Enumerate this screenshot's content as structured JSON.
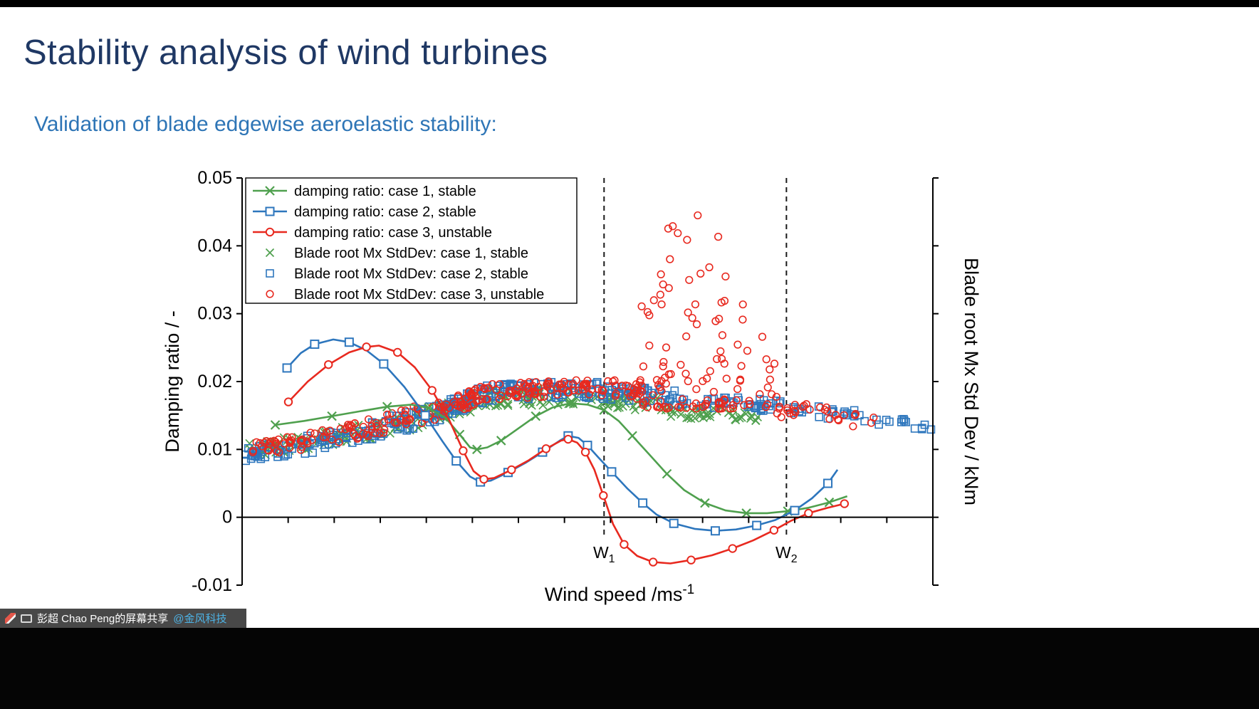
{
  "page": {
    "title": "Stability analysis of wind turbines",
    "subtitle": "Validation of blade edgewise aeroelastic stability:"
  },
  "share_bar": {
    "text": "彭超 Chao Peng的屏幕共享",
    "mention": "@金风科技",
    "icons": [
      "annotation-pen-icon",
      "screen-share-monitor-icon"
    ]
  },
  "chart_data": {
    "type": "line+scatter",
    "title": "",
    "xlabel": {
      "text": "Wind speed /ms",
      "sup": "-1"
    },
    "ylabel_left": "Damping ratio / -",
    "ylabel_right": "Blade root Mx Std Dev / kNm",
    "ylim": [
      -0.01,
      0.05
    ],
    "yticks": [
      0.05,
      0.04,
      0.03,
      0.02,
      0.01,
      0,
      -0.01
    ],
    "x_axis": {
      "labeled": false,
      "tick_count": 15
    },
    "grid": false,
    "legend_position": "top-left-inside",
    "annotations": [
      {
        "x": 0.524,
        "label": "W",
        "sub": "1"
      },
      {
        "x": 0.788,
        "label": "W",
        "sub": "2"
      }
    ],
    "colors": {
      "case1": "#4fa04e",
      "case2": "#2d76bd",
      "case3": "#e8291f",
      "axis": "#000000"
    },
    "legend": [
      {
        "type": "line-x",
        "color_key": "case1",
        "label": "damping ratio: case 1, stable"
      },
      {
        "type": "line-square",
        "color_key": "case2",
        "label": "damping ratio: case 2, stable"
      },
      {
        "type": "line-circle",
        "color_key": "case3",
        "label": "damping ratio: case 3, unstable"
      },
      {
        "type": "x",
        "color_key": "case1",
        "label": "Blade root Mx StdDev: case 1, stable"
      },
      {
        "type": "square",
        "color_key": "case2",
        "label": "Blade root Mx StdDev: case 2, stable"
      },
      {
        "type": "circle",
        "color_key": "case3",
        "label": "Blade root Mx StdDev: case 3, unstable"
      }
    ],
    "line_series": [
      {
        "name": "damping-case1",
        "color_key": "case1",
        "marker": "x",
        "points": [
          [
            0.048,
            0.0136
          ],
          [
            0.09,
            0.0142
          ],
          [
            0.13,
            0.0149
          ],
          [
            0.17,
            0.0156
          ],
          [
            0.21,
            0.0163
          ],
          [
            0.245,
            0.0166
          ],
          [
            0.27,
            0.0161
          ],
          [
            0.295,
            0.0146
          ],
          [
            0.315,
            0.0122
          ],
          [
            0.33,
            0.0103
          ],
          [
            0.34,
            0.01
          ],
          [
            0.355,
            0.0103
          ],
          [
            0.375,
            0.0113
          ],
          [
            0.4,
            0.0131
          ],
          [
            0.425,
            0.0149
          ],
          [
            0.45,
            0.0162
          ],
          [
            0.475,
            0.0168
          ],
          [
            0.5,
            0.0166
          ],
          [
            0.524,
            0.0158
          ],
          [
            0.545,
            0.0142
          ],
          [
            0.565,
            0.012
          ],
          [
            0.59,
            0.0092
          ],
          [
            0.615,
            0.0064
          ],
          [
            0.64,
            0.004
          ],
          [
            0.67,
            0.0021
          ],
          [
            0.7,
            0.001
          ],
          [
            0.73,
            0.0006
          ],
          [
            0.76,
            0.0006
          ],
          [
            0.79,
            0.0009
          ],
          [
            0.82,
            0.0014
          ],
          [
            0.85,
            0.0022
          ],
          [
            0.876,
            0.0031
          ]
        ]
      },
      {
        "name": "damping-case2",
        "color_key": "case2",
        "marker": "square",
        "points": [
          [
            0.065,
            0.022
          ],
          [
            0.085,
            0.0242
          ],
          [
            0.105,
            0.0255
          ],
          [
            0.132,
            0.0262
          ],
          [
            0.155,
            0.0258
          ],
          [
            0.18,
            0.0246
          ],
          [
            0.205,
            0.0226
          ],
          [
            0.235,
            0.0192
          ],
          [
            0.265,
            0.015
          ],
          [
            0.29,
            0.0112
          ],
          [
            0.31,
            0.0083
          ],
          [
            0.33,
            0.006
          ],
          [
            0.345,
            0.0052
          ],
          [
            0.36,
            0.0054
          ],
          [
            0.385,
            0.0066
          ],
          [
            0.41,
            0.008
          ],
          [
            0.435,
            0.0096
          ],
          [
            0.46,
            0.0113
          ],
          [
            0.472,
            0.012
          ],
          [
            0.487,
            0.0117
          ],
          [
            0.5,
            0.0106
          ],
          [
            0.515,
            0.0089
          ],
          [
            0.535,
            0.0067
          ],
          [
            0.558,
            0.0042
          ],
          [
            0.58,
            0.0021
          ],
          [
            0.6,
            0.0004
          ],
          [
            0.625,
            -0.0009
          ],
          [
            0.655,
            -0.0017
          ],
          [
            0.685,
            -0.002
          ],
          [
            0.715,
            -0.0018
          ],
          [
            0.745,
            -0.0012
          ],
          [
            0.772,
            -0.0004
          ],
          [
            0.8,
            0.001
          ],
          [
            0.825,
            0.0028
          ],
          [
            0.848,
            0.005
          ],
          [
            0.862,
            0.007
          ]
        ]
      },
      {
        "name": "damping-case3",
        "color_key": "case3",
        "marker": "circle",
        "points": [
          [
            0.067,
            0.017
          ],
          [
            0.095,
            0.02
          ],
          [
            0.125,
            0.0225
          ],
          [
            0.155,
            0.0243
          ],
          [
            0.18,
            0.0251
          ],
          [
            0.198,
            0.0253
          ],
          [
            0.225,
            0.0243
          ],
          [
            0.25,
            0.0221
          ],
          [
            0.275,
            0.0187
          ],
          [
            0.3,
            0.0143
          ],
          [
            0.32,
            0.0098
          ],
          [
            0.335,
            0.0068
          ],
          [
            0.35,
            0.0056
          ],
          [
            0.365,
            0.0058
          ],
          [
            0.39,
            0.007
          ],
          [
            0.415,
            0.0084
          ],
          [
            0.44,
            0.0101
          ],
          [
            0.462,
            0.0113
          ],
          [
            0.472,
            0.0115
          ],
          [
            0.485,
            0.011
          ],
          [
            0.497,
            0.0096
          ],
          [
            0.51,
            0.007
          ],
          [
            0.523,
            0.0032
          ],
          [
            0.537,
            -0.001
          ],
          [
            0.553,
            -0.004
          ],
          [
            0.572,
            -0.0057
          ],
          [
            0.595,
            -0.0066
          ],
          [
            0.62,
            -0.0068
          ],
          [
            0.65,
            -0.0063
          ],
          [
            0.68,
            -0.0056
          ],
          [
            0.71,
            -0.0046
          ],
          [
            0.74,
            -0.0034
          ],
          [
            0.77,
            -0.0019
          ],
          [
            0.795,
            -0.0005
          ],
          [
            0.82,
            0.0006
          ],
          [
            0.848,
            0.0014
          ],
          [
            0.872,
            0.002
          ]
        ]
      }
    ],
    "scatter_series": [
      {
        "name": "stddev-case1",
        "color_key": "case1",
        "marker": "x",
        "seed": 11,
        "bands": [
          [
            0.005,
            0.08,
            30,
            0.01,
            0.0108,
            0.0012
          ],
          [
            0.08,
            0.18,
            36,
            0.0108,
            0.0126,
            0.0013
          ],
          [
            0.18,
            0.28,
            36,
            0.0126,
            0.0152,
            0.0014
          ],
          [
            0.28,
            0.36,
            44,
            0.0152,
            0.0176,
            0.0013
          ],
          [
            0.36,
            0.52,
            64,
            0.0176,
            0.018,
            0.0013
          ],
          [
            0.52,
            0.62,
            40,
            0.0176,
            0.0162,
            0.0012
          ],
          [
            0.62,
            0.75,
            40,
            0.0157,
            0.0149,
            0.001
          ]
        ]
      },
      {
        "name": "stddev-case2",
        "color_key": "case2",
        "marker": "square",
        "seed": 22,
        "bands": [
          [
            0.005,
            0.08,
            30,
            0.0094,
            0.0104,
            0.0012
          ],
          [
            0.08,
            0.18,
            36,
            0.0104,
            0.0126,
            0.0014
          ],
          [
            0.18,
            0.28,
            38,
            0.0126,
            0.0154,
            0.0015
          ],
          [
            0.28,
            0.36,
            46,
            0.0154,
            0.0184,
            0.0014
          ],
          [
            0.36,
            0.52,
            68,
            0.0184,
            0.0188,
            0.0013
          ],
          [
            0.52,
            0.64,
            46,
            0.0186,
            0.0174,
            0.0012
          ],
          [
            0.64,
            0.8,
            40,
            0.0172,
            0.0163,
            0.001
          ],
          [
            0.8,
            0.92,
            20,
            0.0158,
            0.0146,
            0.0009
          ],
          [
            0.92,
            1.0,
            13,
            0.0144,
            0.013,
            0.0008
          ]
        ]
      },
      {
        "name": "stddev-case3",
        "color_key": "case3",
        "marker": "circle",
        "seed": 33,
        "bands": [
          [
            0.01,
            0.08,
            26,
            0.01,
            0.011,
            0.0011
          ],
          [
            0.08,
            0.18,
            34,
            0.011,
            0.013,
            0.0012
          ],
          [
            0.18,
            0.28,
            36,
            0.013,
            0.0158,
            0.0014
          ],
          [
            0.28,
            0.36,
            46,
            0.0158,
            0.0185,
            0.0013
          ],
          [
            0.36,
            0.5,
            64,
            0.0185,
            0.0192,
            0.0012
          ],
          [
            0.5,
            0.58,
            30,
            0.0192,
            0.019,
            0.0013
          ],
          [
            0.77,
            0.85,
            18,
            0.016,
            0.0152,
            0.0013
          ],
          [
            0.85,
            0.92,
            10,
            0.0148,
            0.0138,
            0.001
          ]
        ],
        "burst": [
          [
            0.57,
            0.62,
            24,
            0.016,
            0.044
          ],
          [
            0.6,
            0.66,
            30,
            0.016,
            0.047
          ],
          [
            0.64,
            0.7,
            28,
            0.016,
            0.042
          ],
          [
            0.68,
            0.74,
            22,
            0.016,
            0.034
          ],
          [
            0.72,
            0.78,
            14,
            0.016,
            0.027
          ]
        ]
      }
    ]
  }
}
